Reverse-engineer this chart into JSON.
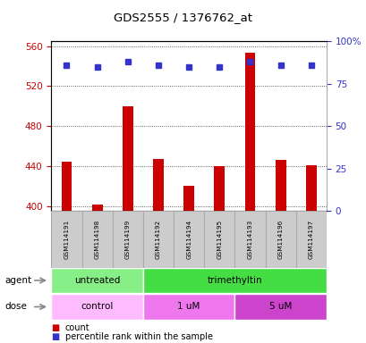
{
  "title": "GDS2555 / 1376762_at",
  "samples": [
    "GSM114191",
    "GSM114198",
    "GSM114199",
    "GSM114192",
    "GSM114194",
    "GSM114195",
    "GSM114193",
    "GSM114196",
    "GSM114197"
  ],
  "bar_values": [
    444,
    401,
    500,
    447,
    420,
    440,
    553,
    446,
    441
  ],
  "percentile_values": [
    86,
    85,
    88,
    86,
    85,
    85,
    88,
    86,
    86
  ],
  "bar_color": "#cc0000",
  "dot_color": "#3333cc",
  "ylim_left": [
    395,
    565
  ],
  "yticks_left": [
    400,
    440,
    480,
    520,
    560
  ],
  "ylim_right": [
    0,
    100
  ],
  "yticks_right": [
    0,
    25,
    50,
    75,
    100
  ],
  "yticklabels_right": [
    "0",
    "25",
    "50",
    "75",
    "100%"
  ],
  "agent_groups": [
    {
      "label": "untreated",
      "start": 0,
      "end": 3,
      "color": "#88ee88"
    },
    {
      "label": "trimethyltin",
      "start": 3,
      "end": 9,
      "color": "#44dd44"
    }
  ],
  "dose_groups": [
    {
      "label": "control",
      "start": 0,
      "end": 3,
      "color": "#ffbbff"
    },
    {
      "label": "1 uM",
      "start": 3,
      "end": 6,
      "color": "#ee77ee"
    },
    {
      "label": "5 uM",
      "start": 6,
      "end": 9,
      "color": "#cc44cc"
    }
  ],
  "legend_count_color": "#cc0000",
  "legend_dot_color": "#3333cc",
  "background_color": "#ffffff",
  "plot_bg_color": "#ffffff",
  "grid_color": "#333333",
  "left_tick_color": "#cc0000",
  "right_tick_color": "#3333cc",
  "sample_band_color": "#cccccc",
  "sample_band_border": "#aaaaaa"
}
